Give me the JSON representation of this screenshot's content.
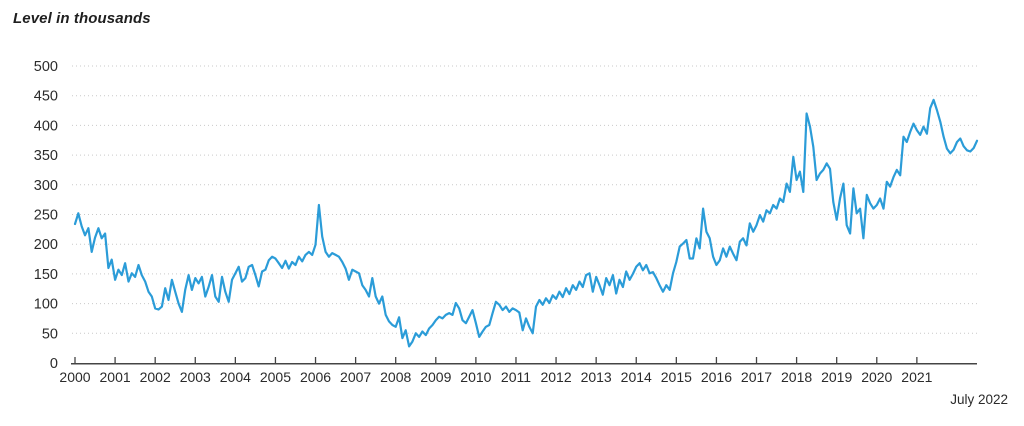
{
  "header": {
    "title": "Level in thousands"
  },
  "footer_note": "July 2022",
  "colors": {
    "line": "#2B9CD8",
    "text": "#2b2b2b",
    "axis": "#444444",
    "grid": "#c9c9c9",
    "background": "#ffffff"
  },
  "chart_data": {
    "type": "line",
    "title": "Level in thousands",
    "series_name": "Level",
    "unit": "thousands",
    "frequency": "monthly",
    "x_start": "2000-01",
    "x_end": "2022-07",
    "end_note": "July 2022",
    "x_tick_labels": [
      "2000",
      "2001",
      "2002",
      "2003",
      "2004",
      "2005",
      "2006",
      "2007",
      "2008",
      "2009",
      "2010",
      "2011",
      "2012",
      "2013",
      "2014",
      "2015",
      "2016",
      "2017",
      "2018",
      "2019",
      "2020",
      "2021"
    ],
    "ylim": [
      0,
      500
    ],
    "y_ticks": [
      0,
      50,
      100,
      150,
      200,
      250,
      300,
      350,
      400,
      450,
      500
    ],
    "grid": "horizontal-dotted",
    "legend": "none",
    "line_color": "#2B9CD8",
    "values": [
      234,
      252,
      230,
      215,
      227,
      187,
      211,
      227,
      210,
      218,
      160,
      174,
      140,
      157,
      148,
      168,
      137,
      151,
      145,
      165,
      148,
      137,
      120,
      112,
      92,
      90,
      95,
      126,
      106,
      140,
      120,
      100,
      86,
      123,
      148,
      123,
      143,
      134,
      145,
      112,
      128,
      148,
      112,
      103,
      145,
      120,
      103,
      140,
      151,
      162,
      137,
      143,
      162,
      165,
      148,
      129,
      154,
      157,
      173,
      179,
      176,
      168,
      160,
      172,
      159,
      170,
      165,
      179,
      171,
      182,
      187,
      182,
      199,
      266,
      213,
      187,
      179,
      185,
      182,
      179,
      170,
      159,
      140,
      157,
      154,
      151,
      131,
      123,
      112,
      143,
      112,
      100,
      112,
      81,
      70,
      64,
      61,
      77,
      42,
      55,
      28,
      36,
      50,
      44,
      53,
      47,
      58,
      64,
      72,
      78,
      75,
      81,
      84,
      81,
      101,
      92,
      72,
      67,
      78,
      89,
      67,
      44,
      53,
      61,
      64,
      84,
      103,
      98,
      89,
      95,
      86,
      92,
      89,
      85,
      55,
      75,
      61,
      50,
      95,
      106,
      98,
      109,
      101,
      114,
      108,
      120,
      111,
      126,
      116,
      131,
      123,
      137,
      128,
      148,
      151,
      120,
      145,
      131,
      115,
      143,
      131,
      148,
      117,
      140,
      128,
      154,
      140,
      150,
      162,
      168,
      156,
      165,
      151,
      153,
      143,
      131,
      120,
      131,
      123,
      151,
      170,
      196,
      201,
      207,
      176,
      176,
      210,
      193,
      260,
      221,
      210,
      179,
      165,
      173,
      193,
      179,
      196,
      184,
      173,
      204,
      210,
      198,
      235,
      221,
      232,
      249,
      238,
      257,
      252,
      266,
      260,
      277,
      271,
      302,
      288,
      347,
      308,
      322,
      288,
      420,
      398,
      364,
      308,
      319,
      325,
      336,
      327,
      271,
      241,
      277,
      302,
      232,
      218,
      294,
      252,
      260,
      210,
      283,
      269,
      260,
      266,
      277,
      260,
      305,
      297,
      313,
      325,
      316,
      381,
      372,
      389,
      403,
      392,
      384,
      398,
      386,
      429,
      443,
      426,
      406,
      381,
      361,
      353,
      359,
      372,
      378,
      365,
      358,
      356,
      362,
      374
    ]
  }
}
